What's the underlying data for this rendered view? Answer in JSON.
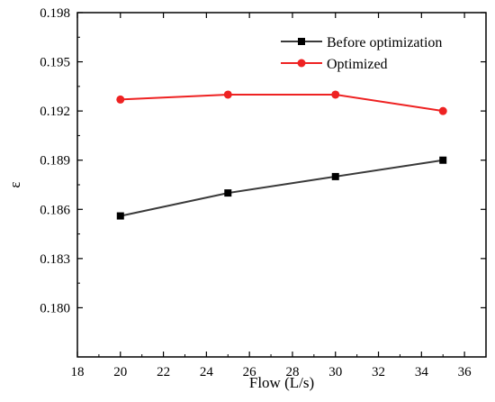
{
  "chart_data": {
    "type": "line",
    "xlabel": "Flow (L/s)",
    "ylabel": "ε",
    "xlim": [
      18,
      37
    ],
    "ylim": [
      0.177,
      0.198
    ],
    "xticks": [
      18,
      20,
      22,
      24,
      26,
      28,
      30,
      32,
      34,
      36
    ],
    "xtick_labels": [
      "18",
      "20",
      "22",
      "24",
      "26",
      "28",
      "30",
      "32",
      "34",
      "36"
    ],
    "yticks": [
      0.18,
      0.183,
      0.186,
      0.189,
      0.192,
      0.195,
      0.198
    ],
    "ytick_labels": [
      "0.180",
      "0.183",
      "0.186",
      "0.189",
      "0.192",
      "0.195",
      "0.198"
    ],
    "grid": false,
    "legend_position": "top-right",
    "series": [
      {
        "name": "Before optimization",
        "marker": "square",
        "color": "#3a3a3a",
        "x": [
          20,
          25,
          30,
          35
        ],
        "y": [
          0.1856,
          0.187,
          0.188,
          0.189
        ]
      },
      {
        "name": "Optimized",
        "marker": "circle",
        "color": "#ee2222",
        "x": [
          20,
          25,
          30,
          35
        ],
        "y": [
          0.1927,
          0.193,
          0.193,
          0.192
        ]
      }
    ]
  }
}
